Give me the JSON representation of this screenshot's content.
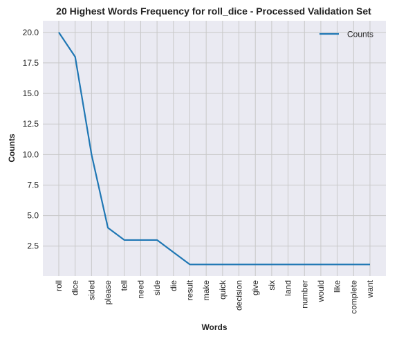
{
  "chart_data": {
    "type": "line",
    "title": "20 Highest Words Frequency for roll_dice - Processed Validation Set",
    "xlabel": "Words",
    "ylabel": "Counts",
    "categories": [
      "roll",
      "dice",
      "sided",
      "please",
      "tell",
      "need",
      "side",
      "die",
      "result",
      "make",
      "quick",
      "decision",
      "give",
      "six",
      "land",
      "number",
      "would",
      "like",
      "complete",
      "want"
    ],
    "series": [
      {
        "name": "Counts",
        "values": [
          20,
          18,
          10,
          4,
          3,
          3,
          3,
          2,
          1,
          1,
          1,
          1,
          1,
          1,
          1,
          1,
          1,
          1,
          1,
          1
        ]
      }
    ],
    "yticks": [
      "2.5",
      "5.0",
      "7.5",
      "10.0",
      "12.5",
      "15.0",
      "17.5",
      "20.0"
    ],
    "ylim": [
      0.05,
      20.95
    ],
    "grid": true,
    "legend": "top-right",
    "line_color": "#1f77b4",
    "plot_bg": "#eaeaf2"
  }
}
